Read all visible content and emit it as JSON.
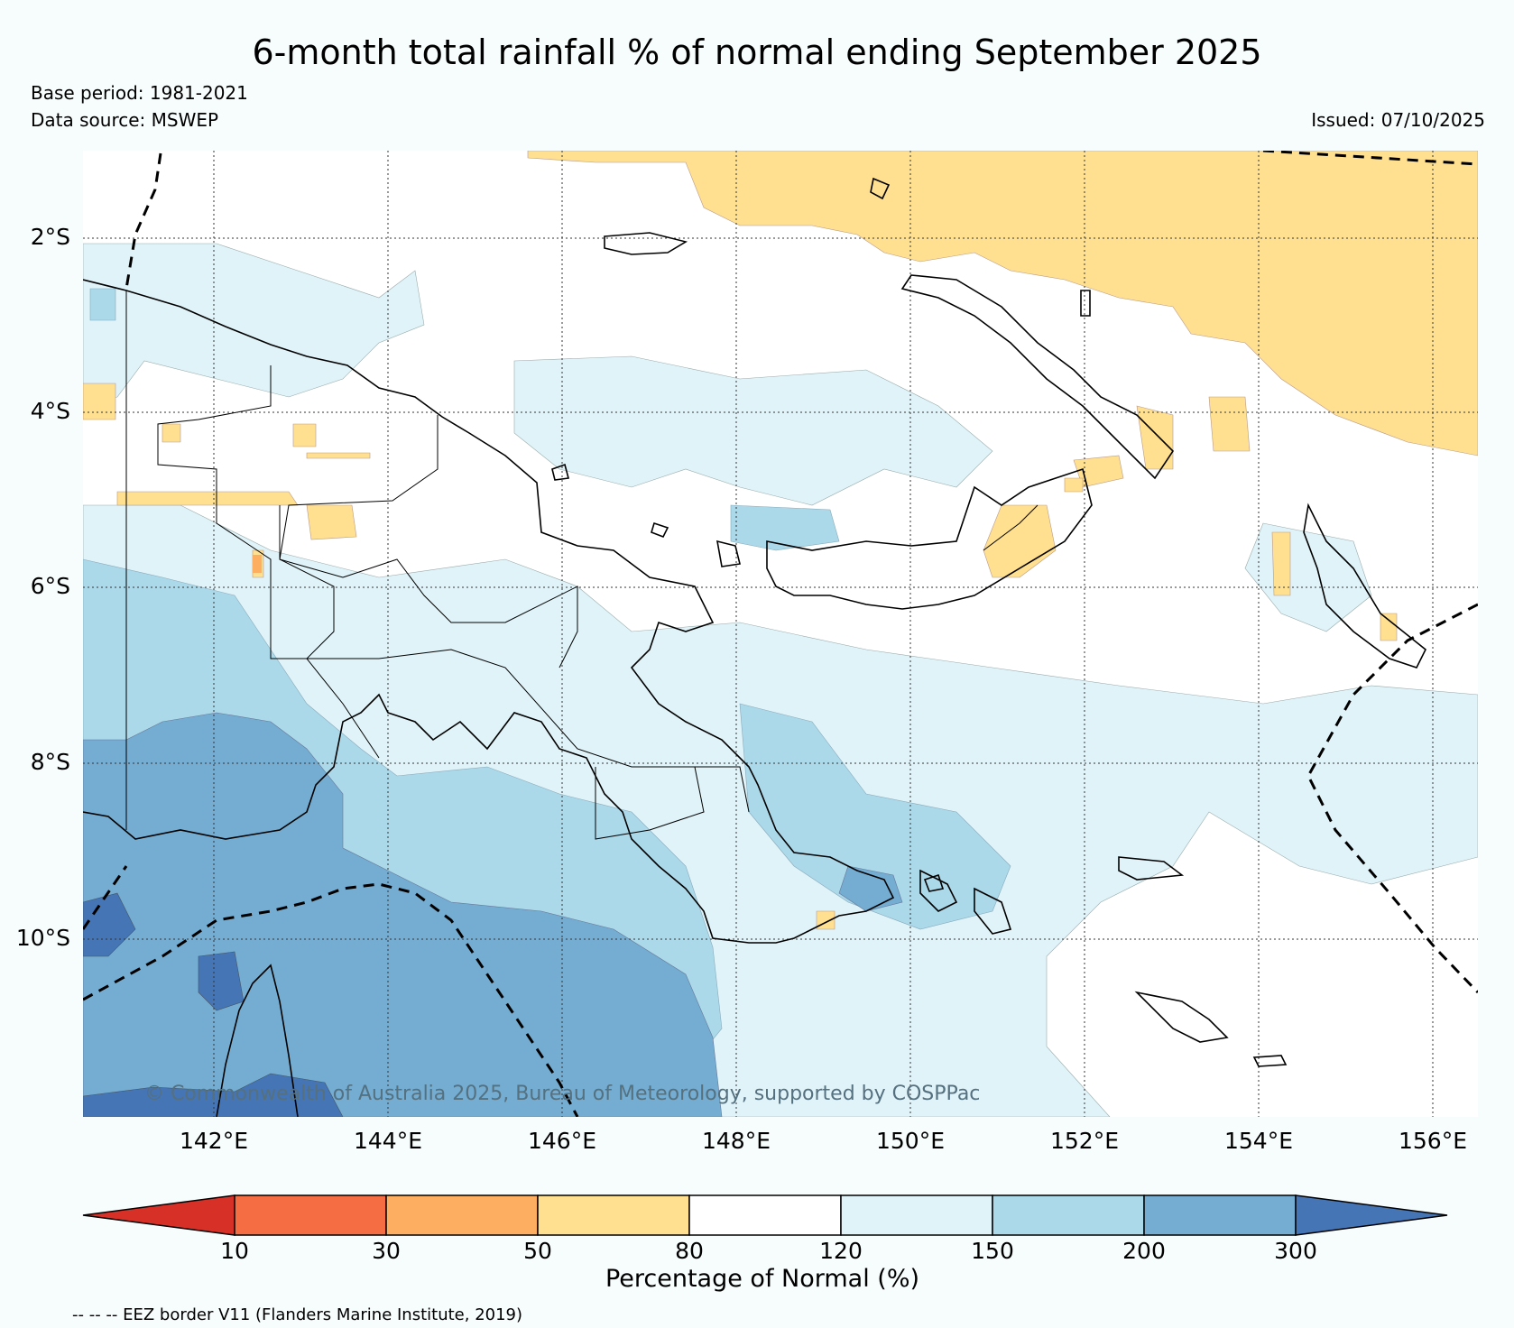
{
  "title": "6-month total rainfall % of normal ending September 2025",
  "base_period": "Base period: 1981-2021",
  "data_source": "Data source: MSWEP",
  "issued": "Issued: 07/10/2025",
  "copyright": "© Commonwealth of Australia 2025, Bureau of Meteorology, supported by COSPPac",
  "latitude_labels": [
    "2°S",
    "4°S",
    "6°S",
    "8°S",
    "10°S"
  ],
  "longitude_labels": [
    "142°E",
    "144°E",
    "146°E",
    "148°E",
    "150°E",
    "152°E",
    "154°E",
    "156°E"
  ],
  "colorbar": {
    "label": "Percentage of Normal (%)",
    "ticks": [
      "10",
      "30",
      "50",
      "80",
      "120",
      "150",
      "200",
      "300"
    ],
    "colors": [
      "#d73027",
      "#f46d43",
      "#fdae61",
      "#fee090",
      "#ffffff",
      "#e0f3f8",
      "#abd9e9",
      "#74add1",
      "#4575b4"
    ]
  },
  "eez_note": "-- -- -- EEZ border V11 (Flanders Marine Institute, 2019)",
  "colors": {
    "background": "#f7fcfd",
    "dry_80": "#fee090",
    "normal": "#ffffff",
    "wet_150": "#e0f3f8",
    "wet_200": "#abd9e9",
    "wet_300": "#74add1",
    "very_wet": "#4575b4"
  }
}
